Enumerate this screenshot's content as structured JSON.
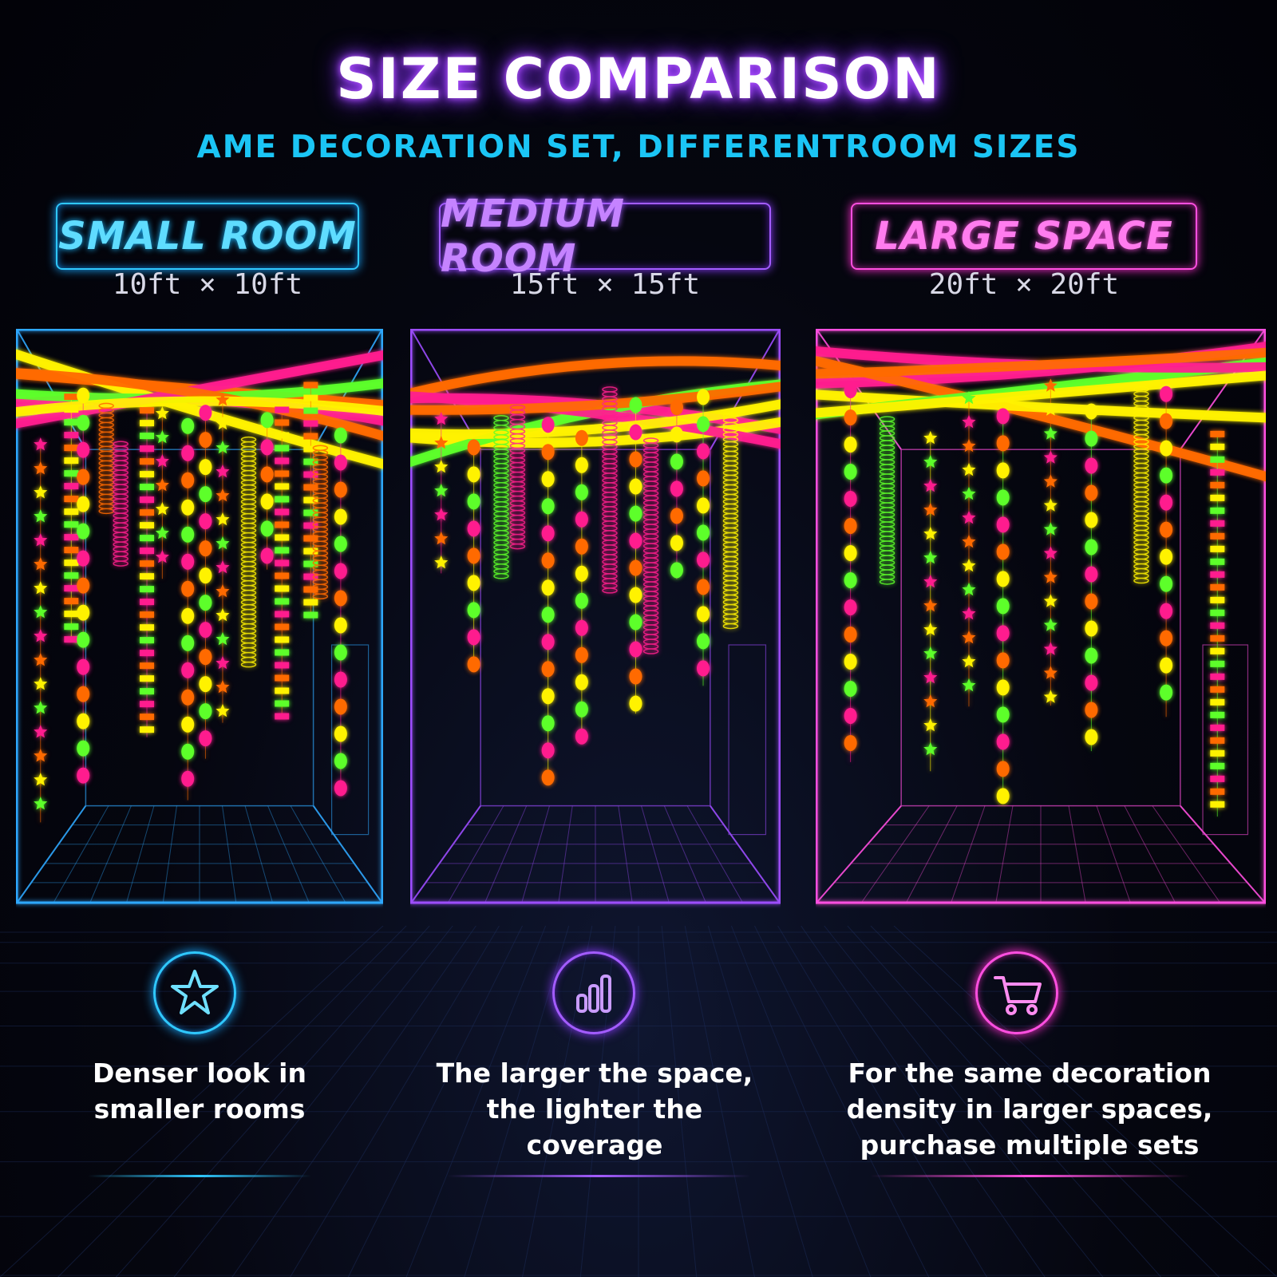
{
  "title": "SIZE COMPARISON",
  "subtitle": "AME DECORATION SET, DIFFERENTROOM SIZES",
  "rooms": [
    {
      "name": "SMALL ROOM",
      "dimensions": "10ft × 10ft",
      "color": "#2fc8ff",
      "icon": "star-icon",
      "caption_line1": "Denser look in",
      "caption_line2": "smaller rooms",
      "caption_line3": ""
    },
    {
      "name": "MEDIUM ROOM",
      "dimensions": "15ft × 15ft",
      "color": "#a35cff",
      "icon": "bar-chart-icon",
      "caption_line1": "The larger the space,",
      "caption_line2": "the lighter the coverage",
      "caption_line3": ""
    },
    {
      "name": "LARGE SPACE",
      "dimensions": "20ft × 20ft",
      "color": "#ff4fe0",
      "icon": "shopping-cart-icon",
      "caption_line1": "For the same decoration",
      "caption_line2": "density in larger spaces,",
      "caption_line3": "purchase multiple sets"
    }
  ],
  "decoration_colors": [
    "#ff1f8e",
    "#ff6a00",
    "#fff200",
    "#5dff2a"
  ]
}
